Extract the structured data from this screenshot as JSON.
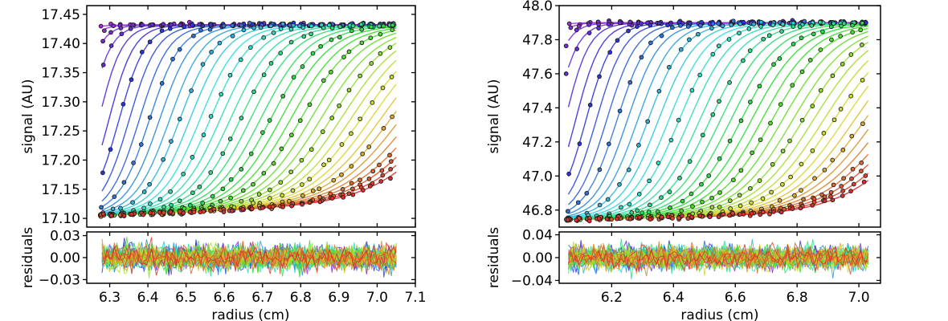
{
  "chart_data": [
    {
      "type": "scatter",
      "title": "",
      "ylabel": "signal (AU)",
      "xlabel": "radius (cm)",
      "residuals_ylabel": "residuals",
      "x_range": [
        6.28,
        7.05
      ],
      "ylim": [
        17.085,
        17.465
      ],
      "xlim": [
        6.24,
        7.1
      ],
      "x_ticks": [
        6.3,
        6.4,
        6.5,
        6.6,
        6.7,
        6.8,
        6.9,
        7.0,
        7.1
      ],
      "x_tick_labels": [
        "6.3",
        "6.4",
        "6.5",
        "6.6",
        "6.7",
        "6.8",
        "6.9",
        "7.0",
        "7.1"
      ],
      "y_ticks": [
        17.1,
        17.15,
        17.2,
        17.25,
        17.3,
        17.35,
        17.4,
        17.45
      ],
      "y_tick_labels": [
        "17.10",
        "17.15",
        "17.20",
        "17.25",
        "17.30",
        "17.35",
        "17.40",
        "17.45"
      ],
      "baseline": [
        17.105,
        17.125
      ],
      "plateau": 17.432,
      "n_scans": 40,
      "residuals_ylim": [
        -0.035,
        0.035
      ],
      "residuals_ticks": [
        -0.03,
        0.0,
        0.03
      ],
      "residuals_tick_labels": [
        "−0.03",
        "0.00",
        "0.03"
      ],
      "residuals_amplitude": 0.018
    },
    {
      "type": "scatter",
      "title": "",
      "ylabel": "signal (AU)",
      "xlabel": "radius (cm)",
      "residuals_ylabel": "residuals",
      "x_range": [
        6.06,
        7.03
      ],
      "ylim": [
        46.7,
        48.0
      ],
      "xlim": [
        6.03,
        7.07
      ],
      "x_ticks": [
        6.2,
        6.4,
        6.6,
        6.8,
        7.0
      ],
      "x_tick_labels": [
        "6.2",
        "6.4",
        "6.6",
        "6.8",
        "7.0"
      ],
      "y_ticks": [
        46.8,
        47.0,
        47.2,
        47.4,
        47.6,
        47.8,
        48.0
      ],
      "y_tick_labels": [
        "46.8",
        "47.0",
        "47.2",
        "47.4",
        "47.6",
        "47.8",
        "48.0"
      ],
      "baseline": [
        46.745,
        46.775
      ],
      "plateau": 47.9,
      "n_scans": 40,
      "residuals_ylim": [
        -0.045,
        0.045
      ],
      "residuals_ticks": [
        -0.04,
        0.0,
        0.04
      ],
      "residuals_tick_labels": [
        "−0.04",
        "0.00",
        "0.04"
      ],
      "residuals_amplitude": 0.022
    }
  ]
}
